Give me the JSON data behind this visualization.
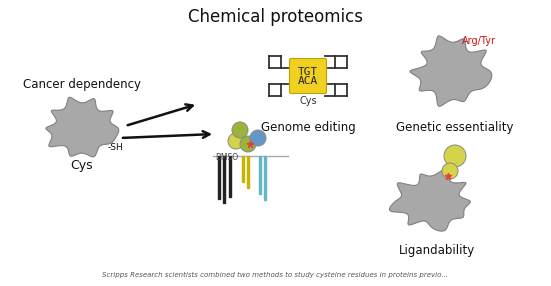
{
  "title": "Chemical proteomics",
  "background_color": "#ffffff",
  "footer_text": "Scripps Research scientists combined two methods to study cysteine residues in proteins previo...",
  "labels": {
    "cancer_dependency": "Cancer dependency",
    "cys": "Cys",
    "sh": "-SH",
    "dmso": "DMSO",
    "genome_editing": "Genome editing",
    "cys2": "Cys",
    "tgt": "TGT",
    "aca": "ACA",
    "ligandability": "Ligandability",
    "genetic_essentiality": "Genetic essentiality",
    "arg_tyr": "Arg/Tyr"
  },
  "colors": {
    "blob_gray": "#a8a8a8",
    "blob_edge": "#808080",
    "arrow_color": "#111111",
    "bar_black": "#222222",
    "bar_yellow": "#c8b400",
    "bar_cyan": "#64b4c8",
    "circle_yellow": "#d4d44a",
    "circle_green": "#9ab43a",
    "circle_blue": "#6496c8",
    "star_pink": "#e04040",
    "dna_yellow": "#f0d020",
    "dna_edge": "#c0a000",
    "arg_tyr_red": "#cc1111",
    "text_dark": "#111111",
    "footer_color": "#555555"
  }
}
